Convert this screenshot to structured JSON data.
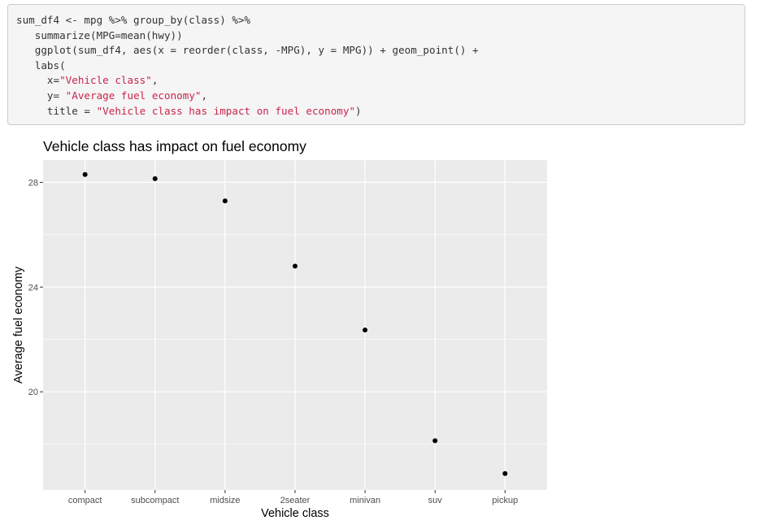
{
  "code": {
    "lines": [
      [
        {
          "t": "sum_df4 <- mpg %>% group_by(class) %>%",
          "c": "plain"
        }
      ],
      [
        {
          "t": "   summarize(MPG=mean(hwy))",
          "c": "plain"
        }
      ],
      [
        {
          "t": "   ggplot(sum_df4, aes(x = reorder(class, -MPG), y = MPG)) + geom_point() +",
          "c": "plain"
        }
      ],
      [
        {
          "t": "   labs(",
          "c": "plain"
        }
      ],
      [
        {
          "t": "     x=",
          "c": "plain"
        },
        {
          "t": "\"Vehicle class\"",
          "c": "str"
        },
        {
          "t": ",",
          "c": "plain"
        }
      ],
      [
        {
          "t": "     y= ",
          "c": "plain"
        },
        {
          "t": "\"Average fuel economy\"",
          "c": "str"
        },
        {
          "t": ",",
          "c": "plain"
        }
      ],
      [
        {
          "t": "     title = ",
          "c": "plain"
        },
        {
          "t": "\"Vehicle class has impact on fuel economy\"",
          "c": "str"
        },
        {
          "t": ")",
          "c": "plain"
        }
      ]
    ]
  },
  "chart_data": {
    "type": "scatter",
    "title": "Vehicle class has impact on fuel economy",
    "xlabel": "Vehicle class",
    "ylabel": "Average fuel economy",
    "categories": [
      "compact",
      "subcompact",
      "midsize",
      "2seater",
      "minivan",
      "suv",
      "pickup"
    ],
    "values": [
      28.3,
      28.14,
      27.29,
      24.8,
      22.36,
      18.13,
      16.88
    ],
    "ylim": [
      16.25,
      28.85
    ],
    "yticks": [
      20,
      24,
      28
    ],
    "grid": true,
    "panel_background": "#ebebeb",
    "grid_color": "#ffffff",
    "point_color": "#000000"
  }
}
